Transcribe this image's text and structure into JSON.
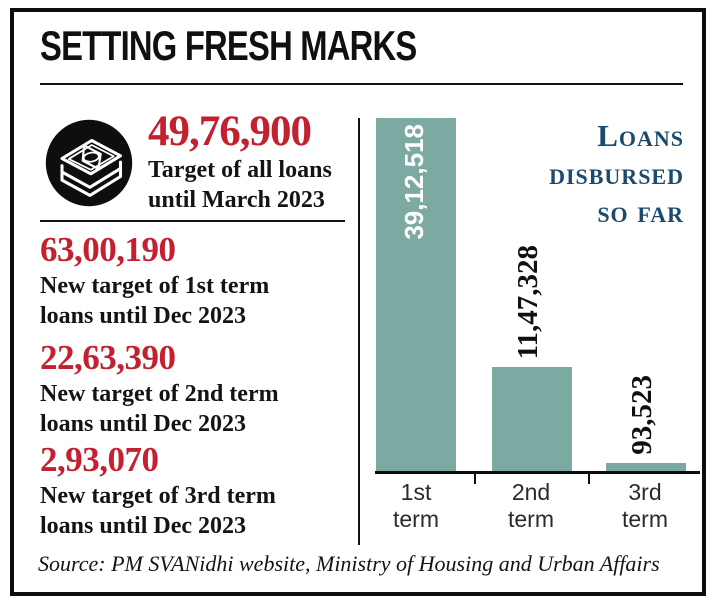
{
  "header": {
    "title": "SETTING FRESH MARKS"
  },
  "colors": {
    "red": "#c32030",
    "navy": "#1c4a6d",
    "teal": "#7caaa2",
    "ink": "#111111"
  },
  "stats": [
    {
      "value": "49,76,900",
      "label_line1": "Target of all loans",
      "label_line2": "until March 2023"
    },
    {
      "value": "63,00,190",
      "label_line1": "New target of 1st term",
      "label_line2": "loans until Dec 2023"
    },
    {
      "value": "22,63,390",
      "label_line1": "New target of 2nd term",
      "label_line2": "loans until Dec 2023"
    },
    {
      "value": "2,93,070",
      "label_line1": "New target of 3rd term",
      "label_line2": "loans until Dec 2023"
    }
  ],
  "icon": {
    "name": "money-stack-icon"
  },
  "chart_data": {
    "type": "bar",
    "title": "Loans disbursed so far",
    "title_lines": [
      "Loans",
      "disbursed",
      "so far"
    ],
    "categories": [
      "1st term",
      "2nd term",
      "3rd term"
    ],
    "values": [
      3912518,
      1147328,
      93523
    ],
    "value_labels": [
      "39,12,518",
      "11,47,328",
      "93,523"
    ],
    "bar_color": "#7caaa2",
    "value_label_style": "rotated 90deg, inside bar in white when bar is tall, above bar in black otherwise",
    "xlabel": "",
    "ylabel": "",
    "ylim": [
      0,
      3912518
    ],
    "grid": false,
    "legend": false
  },
  "source": {
    "text": "Source: PM SVANidhi website, Ministry of Housing and Urban Affairs"
  }
}
